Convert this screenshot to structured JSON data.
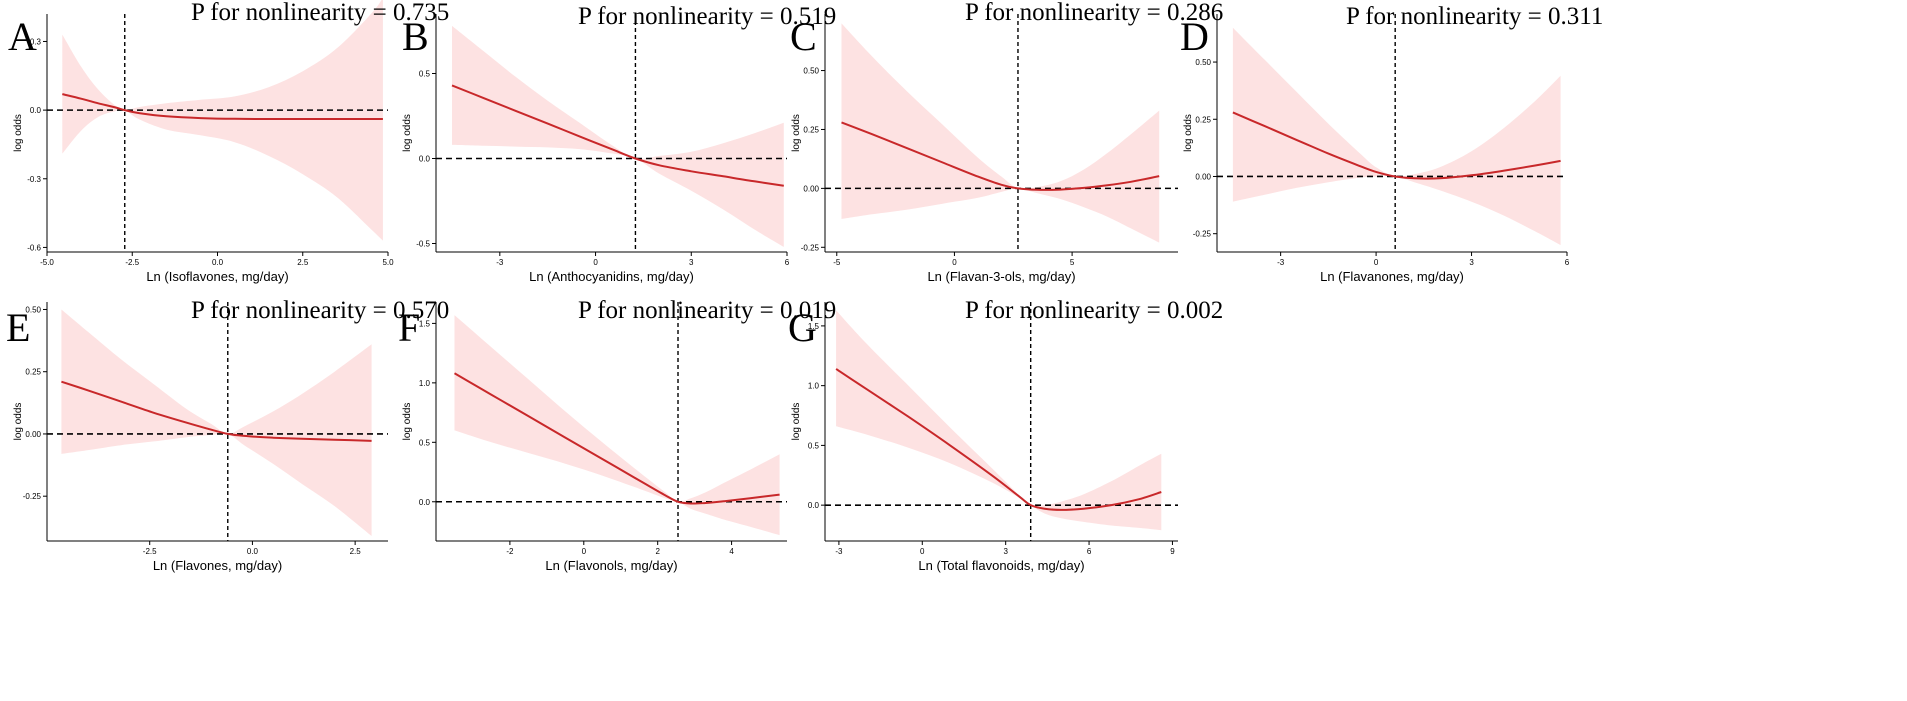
{
  "chart_data": [
    {
      "panel": "A",
      "type": "line",
      "title": "P for nonlinearity = 0.735",
      "xlabel": "Ln (Isoflavones, mg/day)",
      "ylabel": "log odds",
      "xlim": [
        -5.0,
        5.0
      ],
      "ylim": [
        -0.62,
        0.42
      ],
      "xticks": [
        -5.0,
        -2.5,
        0.0,
        2.5,
        5.0
      ],
      "xtick_labels": [
        "-5.0",
        "-2.5",
        "0.0",
        "2.5",
        "5.0"
      ],
      "yticks": [
        -0.6,
        -0.3,
        0.0,
        0.3
      ],
      "ytick_labels": [
        "-0.6",
        "-0.3",
        "0.0",
        "0.3"
      ],
      "ref_x": -2.72,
      "ref_y": 0,
      "line": {
        "x": [
          -4.55,
          -4.0,
          -3.5,
          -3.0,
          -2.72,
          -2.3,
          -1.5,
          -0.5,
          0.5,
          1.5,
          2.5,
          3.5,
          4.5,
          4.85
        ],
        "y": [
          0.07,
          0.05,
          0.03,
          0.012,
          0.0,
          -0.013,
          -0.027,
          -0.035,
          -0.038,
          -0.039,
          -0.039,
          -0.039,
          -0.039,
          -0.039
        ]
      },
      "ci_upper": {
        "x": [
          -4.55,
          -4.0,
          -3.5,
          -3.0,
          -2.72,
          -2.3,
          -1.5,
          -0.5,
          0.5,
          1.5,
          2.5,
          3.5,
          4.5,
          4.85
        ],
        "y": [
          0.33,
          0.19,
          0.09,
          0.02,
          0.0,
          0.013,
          0.03,
          0.045,
          0.06,
          0.1,
          0.17,
          0.27,
          0.42,
          0.49
        ]
      },
      "ci_lower": {
        "x": [
          -4.55,
          -4.0,
          -3.5,
          -3.0,
          -2.72,
          -2.3,
          -1.5,
          -0.5,
          0.5,
          1.5,
          2.5,
          3.5,
          4.5,
          4.85
        ],
        "y": [
          -0.19,
          -0.09,
          -0.03,
          -0.005,
          0.0,
          -0.04,
          -0.085,
          -0.11,
          -0.14,
          -0.2,
          -0.28,
          -0.38,
          -0.52,
          -0.57
        ]
      }
    },
    {
      "panel": "B",
      "type": "line",
      "title": "P for nonlinearity = 0.519",
      "xlabel": "Ln (Anthocyanidins, mg/day)",
      "ylabel": "log odds",
      "xlim": [
        -5.0,
        6.0
      ],
      "ylim": [
        -0.55,
        0.85
      ],
      "xticks": [
        -3,
        0,
        3,
        6
      ],
      "xtick_labels": [
        "-3",
        "0",
        "3",
        "6"
      ],
      "yticks": [
        -0.5,
        0.0,
        0.5
      ],
      "ytick_labels": [
        "-0.5",
        "0.0",
        "0.5"
      ],
      "ref_x": 1.25,
      "ref_y": 0,
      "line": {
        "x": [
          -4.5,
          -3.5,
          -2.5,
          -1.5,
          -0.5,
          0.5,
          1.25,
          2.0,
          3.0,
          4.0,
          5.0,
          5.9
        ],
        "y": [
          0.43,
          0.355,
          0.28,
          0.205,
          0.13,
          0.055,
          0.0,
          -0.04,
          -0.075,
          -0.105,
          -0.135,
          -0.16
        ]
      },
      "ci_upper": {
        "x": [
          -4.5,
          -3.5,
          -2.5,
          -1.5,
          -0.5,
          0.5,
          1.25,
          2.0,
          3.0,
          4.0,
          5.0,
          5.9
        ],
        "y": [
          0.78,
          0.63,
          0.48,
          0.34,
          0.21,
          0.08,
          0.0,
          0.015,
          0.04,
          0.09,
          0.15,
          0.21
        ]
      },
      "ci_lower": {
        "x": [
          -4.5,
          -3.5,
          -2.5,
          -1.5,
          -0.5,
          0.5,
          1.25,
          2.0,
          3.0,
          4.0,
          5.0,
          5.9
        ],
        "y": [
          0.08,
          0.075,
          0.07,
          0.065,
          0.055,
          0.03,
          0.0,
          -0.09,
          -0.19,
          -0.3,
          -0.42,
          -0.52
        ]
      }
    },
    {
      "panel": "C",
      "type": "line",
      "title": "P for nonlinearity = 0.286",
      "xlabel": "Ln (Flavan-3-ols, mg/day)",
      "ylabel": "log odds",
      "xlim": [
        -5.5,
        9.5
      ],
      "ylim": [
        -0.27,
        0.74
      ],
      "xticks": [
        -5,
        0,
        5
      ],
      "xtick_labels": [
        "-5",
        "0",
        "5"
      ],
      "yticks": [
        -0.25,
        0.0,
        0.25,
        0.5
      ],
      "ytick_labels": [
        "-0.25",
        "0.00",
        "0.25",
        "0.50"
      ],
      "ref_x": 2.7,
      "ref_y": 0,
      "line": {
        "x": [
          -4.8,
          -3.5,
          -2.0,
          -0.5,
          1.0,
          2.0,
          2.7,
          3.5,
          4.5,
          5.5,
          6.5,
          7.5,
          8.7
        ],
        "y": [
          0.28,
          0.23,
          0.17,
          0.11,
          0.05,
          0.015,
          0.0,
          -0.006,
          -0.005,
          0.002,
          0.013,
          0.028,
          0.052
        ]
      },
      "ci_upper": {
        "x": [
          -4.8,
          -3.5,
          -2.0,
          -0.5,
          1.0,
          2.0,
          2.7,
          3.5,
          4.5,
          5.5,
          6.5,
          7.5,
          8.7
        ],
        "y": [
          0.7,
          0.56,
          0.41,
          0.27,
          0.13,
          0.05,
          0.0,
          0.005,
          0.03,
          0.08,
          0.15,
          0.23,
          0.33
        ]
      },
      "ci_lower": {
        "x": [
          -4.8,
          -3.5,
          -2.0,
          -0.5,
          1.0,
          2.0,
          2.7,
          3.5,
          4.5,
          5.5,
          6.5,
          7.5,
          8.7
        ],
        "y": [
          -0.13,
          -0.11,
          -0.09,
          -0.065,
          -0.04,
          -0.015,
          0.0,
          -0.02,
          -0.045,
          -0.08,
          -0.12,
          -0.17,
          -0.23
        ]
      }
    },
    {
      "panel": "D",
      "type": "line",
      "title": "P for nonlinearity = 0.311",
      "xlabel": "Ln (Flavanones, mg/day)",
      "ylabel": "log odds",
      "xlim": [
        -5.0,
        6.0
      ],
      "ylim": [
        -0.33,
        0.71
      ],
      "xticks": [
        -3,
        0,
        3,
        6
      ],
      "xtick_labels": [
        "-3",
        "0",
        "3",
        "6"
      ],
      "yticks": [
        -0.25,
        0.0,
        0.25,
        0.5
      ],
      "ytick_labels": [
        "-0.25",
        "0.00",
        "0.25",
        "0.50"
      ],
      "ref_x": 0.6,
      "ref_y": 0,
      "line": {
        "x": [
          -4.5,
          -3.5,
          -2.5,
          -1.5,
          -0.5,
          0.0,
          0.6,
          1.2,
          2.0,
          3.0,
          4.0,
          5.0,
          5.8
        ],
        "y": [
          0.28,
          0.22,
          0.16,
          0.1,
          0.045,
          0.02,
          0.0,
          -0.008,
          -0.008,
          0.005,
          0.025,
          0.048,
          0.068
        ]
      },
      "ci_upper": {
        "x": [
          -4.5,
          -3.5,
          -2.5,
          -1.5,
          -0.5,
          0.0,
          0.6,
          1.2,
          2.0,
          3.0,
          4.0,
          5.0,
          5.8
        ],
        "y": [
          0.65,
          0.51,
          0.37,
          0.23,
          0.1,
          0.04,
          0.0,
          0.01,
          0.04,
          0.11,
          0.21,
          0.33,
          0.44
        ]
      },
      "ci_lower": {
        "x": [
          -4.5,
          -3.5,
          -2.5,
          -1.5,
          -0.5,
          0.0,
          0.6,
          1.2,
          2.0,
          3.0,
          4.0,
          5.0,
          5.8
        ],
        "y": [
          -0.11,
          -0.08,
          -0.05,
          -0.025,
          -0.005,
          0.0,
          0.0,
          -0.025,
          -0.06,
          -0.11,
          -0.17,
          -0.24,
          -0.3
        ]
      }
    },
    {
      "panel": "E",
      "type": "line",
      "title": "P for nonlinearity = 0.570",
      "xlabel": "Ln (Flavones, mg/day)",
      "ylabel": "log odds",
      "xlim": [
        -5.0,
        3.3
      ],
      "ylim": [
        -0.43,
        0.53
      ],
      "xticks": [
        -2.5,
        0.0,
        2.5
      ],
      "xtick_labels": [
        "-2.5",
        "0.0",
        "2.5"
      ],
      "yticks": [
        -0.25,
        0.0,
        0.25,
        0.5
      ],
      "ytick_labels": [
        "-0.25",
        "0.00",
        "0.25",
        "0.50"
      ],
      "ref_x": -0.6,
      "ref_y": 0,
      "line": {
        "x": [
          -4.65,
          -4.0,
          -3.2,
          -2.4,
          -1.6,
          -1.0,
          -0.6,
          -0.2,
          0.5,
          1.2,
          2.0,
          2.9
        ],
        "y": [
          0.21,
          0.175,
          0.13,
          0.085,
          0.045,
          0.017,
          0.0,
          -0.008,
          -0.015,
          -0.019,
          -0.023,
          -0.028
        ]
      },
      "ci_upper": {
        "x": [
          -4.65,
          -4.0,
          -3.2,
          -2.4,
          -1.6,
          -1.0,
          -0.6,
          -0.2,
          0.5,
          1.2,
          2.0,
          2.9
        ],
        "y": [
          0.5,
          0.41,
          0.3,
          0.2,
          0.1,
          0.04,
          0.0,
          0.03,
          0.09,
          0.16,
          0.25,
          0.36
        ]
      },
      "ci_lower": {
        "x": [
          -4.65,
          -4.0,
          -3.2,
          -2.4,
          -1.6,
          -1.0,
          -0.6,
          -0.2,
          0.5,
          1.2,
          2.0,
          2.9
        ],
        "y": [
          -0.08,
          -0.065,
          -0.045,
          -0.03,
          -0.013,
          -0.004,
          0.0,
          -0.045,
          -0.12,
          -0.2,
          -0.29,
          -0.41
        ]
      }
    },
    {
      "panel": "F",
      "type": "line",
      "title": "P for nonlinearity = 0.019",
      "xlabel": "Ln (Flavonols, mg/day)",
      "ylabel": "log odds",
      "xlim": [
        -4.0,
        5.5
      ],
      "ylim": [
        -0.33,
        1.68
      ],
      "xticks": [
        -2,
        0,
        2,
        4
      ],
      "xtick_labels": [
        "-2",
        "0",
        "2",
        "4"
      ],
      "yticks": [
        0.0,
        0.5,
        1.0,
        1.5
      ],
      "ytick_labels": [
        "0.0",
        "0.5",
        "1.0",
        "1.5"
      ],
      "ref_x": 2.55,
      "ref_y": 0,
      "line": {
        "x": [
          -3.5,
          -2.5,
          -1.5,
          -0.5,
          0.5,
          1.5,
          2.2,
          2.55,
          2.9,
          3.3,
          3.8,
          4.5,
          5.3
        ],
        "y": [
          1.08,
          0.9,
          0.72,
          0.54,
          0.36,
          0.18,
          0.055,
          0.0,
          -0.015,
          -0.01,
          0.005,
          0.03,
          0.06
        ]
      },
      "ci_upper": {
        "x": [
          -3.5,
          -2.5,
          -1.5,
          -0.5,
          0.5,
          1.5,
          2.2,
          2.55,
          2.9,
          3.3,
          3.8,
          4.5,
          5.3
        ],
        "y": [
          1.57,
          1.3,
          1.03,
          0.76,
          0.5,
          0.25,
          0.08,
          0.0,
          0.03,
          0.08,
          0.16,
          0.27,
          0.4
        ]
      },
      "ci_lower": {
        "x": [
          -3.5,
          -2.5,
          -1.5,
          -0.5,
          0.5,
          1.5,
          2.2,
          2.55,
          2.9,
          3.3,
          3.8,
          4.5,
          5.3
        ],
        "y": [
          0.6,
          0.5,
          0.41,
          0.32,
          0.22,
          0.11,
          0.03,
          0.0,
          -0.06,
          -0.1,
          -0.15,
          -0.21,
          -0.28
        ]
      }
    },
    {
      "panel": "G",
      "type": "line",
      "title": "P for nonlinearity = 0.002",
      "xlabel": "Ln (Total flavonoids, mg/day)",
      "ylabel": "log odds",
      "xlim": [
        -3.5,
        9.2
      ],
      "ylim": [
        -0.3,
        1.7
      ],
      "xticks": [
        -3,
        0,
        3,
        6,
        9
      ],
      "xtick_labels": [
        "-3",
        "0",
        "3",
        "6",
        "9"
      ],
      "yticks": [
        0.0,
        0.5,
        1.0,
        1.5
      ],
      "ytick_labels": [
        "0.0",
        "0.5",
        "1.0",
        "1.5"
      ],
      "ref_x": 3.9,
      "ref_y": 0,
      "line": {
        "x": [
          -3.1,
          -2.0,
          -0.5,
          1.0,
          2.5,
          3.5,
          3.9,
          4.4,
          5.0,
          5.8,
          6.8,
          7.8,
          8.6
        ],
        "y": [
          1.14,
          0.97,
          0.74,
          0.5,
          0.25,
          0.07,
          0.0,
          -0.03,
          -0.04,
          -0.03,
          0.0,
          0.05,
          0.11
        ]
      },
      "ci_upper": {
        "x": [
          -3.1,
          -2.0,
          -0.5,
          1.0,
          2.5,
          3.5,
          3.9,
          4.4,
          5.0,
          5.8,
          6.8,
          7.8,
          8.6
        ],
        "y": [
          1.63,
          1.35,
          1.0,
          0.65,
          0.31,
          0.08,
          0.0,
          0.0,
          0.03,
          0.09,
          0.2,
          0.33,
          0.43
        ]
      },
      "ci_lower": {
        "x": [
          -3.1,
          -2.0,
          -0.5,
          1.0,
          2.5,
          3.5,
          3.9,
          4.4,
          5.0,
          5.8,
          6.8,
          7.8,
          8.6
        ],
        "y": [
          0.66,
          0.59,
          0.48,
          0.35,
          0.19,
          0.06,
          0.0,
          -0.07,
          -0.11,
          -0.14,
          -0.17,
          -0.19,
          -0.21
        ]
      }
    }
  ],
  "colors": {
    "line": "#c8282a",
    "ci_band": "#fde2e2",
    "axis": "#000000",
    "reference": "#000000"
  }
}
